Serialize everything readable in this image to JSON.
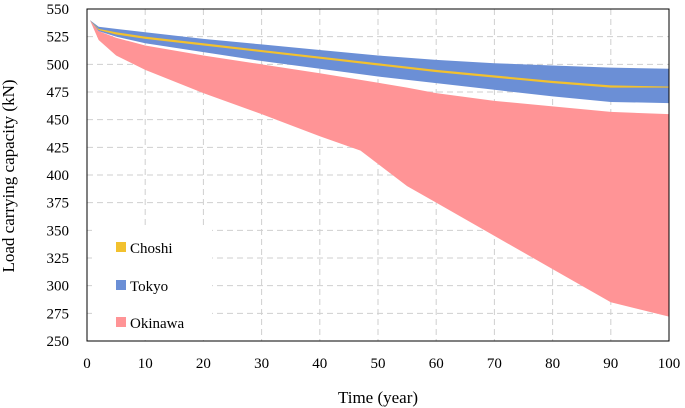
{
  "chart_data": {
    "type": "area",
    "title": "",
    "xlabel": "Time (year)",
    "ylabel": "Load carrying capacity (kN)",
    "xlim": [
      0,
      100
    ],
    "ylim": [
      250,
      550
    ],
    "xticks": [
      0,
      10,
      20,
      30,
      40,
      50,
      60,
      70,
      80,
      90,
      100
    ],
    "yticks": [
      250,
      275,
      300,
      325,
      350,
      375,
      400,
      425,
      450,
      475,
      500,
      525,
      550
    ],
    "grid": true,
    "legend_position": "lower-left",
    "series": [
      {
        "name": "Choshi",
        "color": "#f2c12e",
        "x": [
          0.5,
          2,
          5,
          10,
          20,
          30,
          40,
          50,
          60,
          70,
          80,
          90,
          100
        ],
        "upper": [
          540,
          532,
          529,
          525,
          519,
          513,
          507,
          501,
          495,
          490,
          485,
          481,
          480
        ],
        "lower": [
          540,
          531,
          527,
          523,
          517,
          511,
          505,
          499,
          493,
          488,
          483,
          479,
          479
        ]
      },
      {
        "name": "Tokyo",
        "color": "#6b8fd6",
        "x": [
          0.5,
          2,
          5,
          10,
          20,
          30,
          40,
          50,
          60,
          70,
          80,
          90,
          100
        ],
        "upper": [
          540,
          534,
          532,
          529,
          523,
          518,
          513,
          508,
          504,
          501,
          499,
          497,
          496
        ],
        "lower": [
          540,
          530,
          525,
          519,
          511,
          503,
          496,
          489,
          483,
          477,
          471,
          466,
          465
        ]
      },
      {
        "name": "Okinawa",
        "color": "#ff9496",
        "x": [
          0.5,
          2,
          5,
          10,
          20,
          30,
          40,
          47,
          55,
          60,
          70,
          80,
          90,
          100
        ],
        "upper": [
          540,
          530,
          524,
          517,
          508,
          500,
          492,
          486,
          479,
          474,
          467,
          462,
          457,
          455
        ],
        "lower": [
          540,
          522,
          508,
          495,
          474,
          455,
          435,
          422,
          390,
          375,
          345,
          315,
          285,
          272
        ]
      }
    ],
    "legend": [
      {
        "name": "Choshi",
        "color": "#f2c12e"
      },
      {
        "name": "Tokyo",
        "color": "#6b8fd6"
      },
      {
        "name": "Okinawa",
        "color": "#ff9496"
      }
    ]
  }
}
